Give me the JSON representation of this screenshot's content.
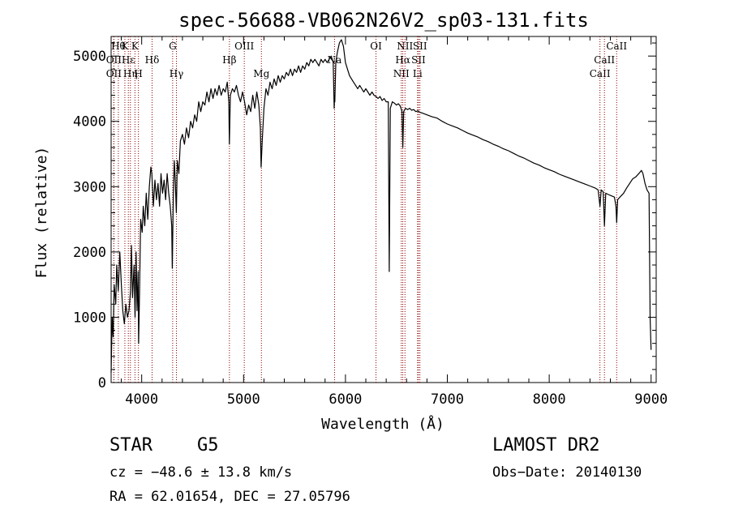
{
  "chart_data": {
    "type": "line",
    "title": "spec-56688-VB062N26V2_sp03-131.fits",
    "xlabel": "Wavelength (Å)",
    "ylabel": "Flux (relative)",
    "xlim": [
      3700,
      9050
    ],
    "ylim": [
      0,
      5300
    ],
    "xticks": [
      4000,
      5000,
      6000,
      7000,
      8000,
      9000
    ],
    "yticks": [
      0,
      1000,
      2000,
      3000,
      4000,
      5000
    ],
    "x_tick_labels": [
      "4000",
      "5000",
      "6000",
      "7000",
      "8000",
      "9000"
    ],
    "y_tick_labels": [
      "0",
      "1000",
      "2000",
      "3000",
      "4000",
      "5000"
    ],
    "line_color": "#000000",
    "marker_color": "#8b0000",
    "grid": false,
    "legend": "none",
    "series": [
      {
        "points": [
          [
            3700,
            150
          ],
          [
            3710,
            1000
          ],
          [
            3720,
            700
          ],
          [
            3730,
            1500
          ],
          [
            3745,
            1200
          ],
          [
            3755,
            1800
          ],
          [
            3770,
            1400
          ],
          [
            3785,
            2000
          ],
          [
            3800,
            1500
          ],
          [
            3815,
            1100
          ],
          [
            3830,
            900
          ],
          [
            3845,
            1200
          ],
          [
            3860,
            1000
          ],
          [
            3875,
            1100
          ],
          [
            3890,
            1400
          ],
          [
            3900,
            2100
          ],
          [
            3910,
            1300
          ],
          [
            3925,
            1800
          ],
          [
            3935,
            1000
          ],
          [
            3945,
            2000
          ],
          [
            3955,
            1100
          ],
          [
            3965,
            1700
          ],
          [
            3970,
            600
          ],
          [
            3980,
            1500
          ],
          [
            3990,
            2500
          ],
          [
            4005,
            2300
          ],
          [
            4015,
            2700
          ],
          [
            4030,
            2400
          ],
          [
            4045,
            2900
          ],
          [
            4060,
            2500
          ],
          [
            4075,
            3000
          ],
          [
            4090,
            3300
          ],
          [
            4100,
            3200
          ],
          [
            4115,
            2700
          ],
          [
            4130,
            3100
          ],
          [
            4145,
            2800
          ],
          [
            4160,
            3050
          ],
          [
            4175,
            2700
          ],
          [
            4190,
            3200
          ],
          [
            4205,
            2900
          ],
          [
            4220,
            3100
          ],
          [
            4235,
            2800
          ],
          [
            4250,
            3200
          ],
          [
            4265,
            2900
          ],
          [
            4280,
            2700
          ],
          [
            4295,
            2400
          ],
          [
            4300,
            1750
          ],
          [
            4310,
            2800
          ],
          [
            4320,
            3400
          ],
          [
            4330,
            3100
          ],
          [
            4340,
            2600
          ],
          [
            4350,
            3400
          ],
          [
            4365,
            3200
          ],
          [
            4380,
            3700
          ],
          [
            4400,
            3800
          ],
          [
            4420,
            3650
          ],
          [
            4440,
            3900
          ],
          [
            4460,
            3750
          ],
          [
            4480,
            4000
          ],
          [
            4500,
            3900
          ],
          [
            4520,
            4100
          ],
          [
            4540,
            4000
          ],
          [
            4560,
            4300
          ],
          [
            4580,
            4150
          ],
          [
            4600,
            4300
          ],
          [
            4620,
            4250
          ],
          [
            4640,
            4450
          ],
          [
            4660,
            4300
          ],
          [
            4680,
            4500
          ],
          [
            4700,
            4350
          ],
          [
            4720,
            4500
          ],
          [
            4740,
            4400
          ],
          [
            4760,
            4550
          ],
          [
            4780,
            4400
          ],
          [
            4800,
            4500
          ],
          [
            4820,
            4450
          ],
          [
            4840,
            4600
          ],
          [
            4855,
            4300
          ],
          [
            4861,
            3650
          ],
          [
            4870,
            4400
          ],
          [
            4890,
            4500
          ],
          [
            4910,
            4450
          ],
          [
            4930,
            4550
          ],
          [
            4950,
            4400
          ],
          [
            4970,
            4300
          ],
          [
            4990,
            4450
          ],
          [
            5010,
            4300
          ],
          [
            5030,
            4100
          ],
          [
            5050,
            4250
          ],
          [
            5070,
            4150
          ],
          [
            5090,
            4400
          ],
          [
            5110,
            4200
          ],
          [
            5130,
            4450
          ],
          [
            5150,
            4250
          ],
          [
            5165,
            3900
          ],
          [
            5172,
            3300
          ],
          [
            5183,
            3700
          ],
          [
            5200,
            4200
          ],
          [
            5220,
            4500
          ],
          [
            5240,
            4400
          ],
          [
            5260,
            4600
          ],
          [
            5280,
            4500
          ],
          [
            5300,
            4650
          ],
          [
            5320,
            4550
          ],
          [
            5340,
            4700
          ],
          [
            5360,
            4600
          ],
          [
            5380,
            4700
          ],
          [
            5400,
            4650
          ],
          [
            5420,
            4750
          ],
          [
            5440,
            4700
          ],
          [
            5460,
            4800
          ],
          [
            5480,
            4700
          ],
          [
            5500,
            4800
          ],
          [
            5520,
            4750
          ],
          [
            5540,
            4850
          ],
          [
            5560,
            4750
          ],
          [
            5580,
            4850
          ],
          [
            5600,
            4800
          ],
          [
            5620,
            4900
          ],
          [
            5640,
            4850
          ],
          [
            5660,
            4950
          ],
          [
            5680,
            4900
          ],
          [
            5700,
            4950
          ],
          [
            5720,
            4900
          ],
          [
            5740,
            4850
          ],
          [
            5760,
            4950
          ],
          [
            5780,
            4900
          ],
          [
            5800,
            4950
          ],
          [
            5820,
            4900
          ],
          [
            5840,
            4950
          ],
          [
            5860,
            5000
          ],
          [
            5880,
            4900
          ],
          [
            5889,
            4200
          ],
          [
            5893,
            4400
          ],
          [
            5896,
            4300
          ],
          [
            5905,
            4900
          ],
          [
            5920,
            5050
          ],
          [
            5940,
            5200
          ],
          [
            5960,
            5250
          ],
          [
            5980,
            5150
          ],
          [
            6000,
            4900
          ],
          [
            6020,
            4800
          ],
          [
            6040,
            4700
          ],
          [
            6060,
            4650
          ],
          [
            6080,
            4600
          ],
          [
            6100,
            4550
          ],
          [
            6120,
            4500
          ],
          [
            6140,
            4550
          ],
          [
            6160,
            4500
          ],
          [
            6180,
            4450
          ],
          [
            6200,
            4500
          ],
          [
            6220,
            4450
          ],
          [
            6240,
            4400
          ],
          [
            6260,
            4450
          ],
          [
            6280,
            4400
          ],
          [
            6300,
            4380
          ],
          [
            6320,
            4350
          ],
          [
            6340,
            4380
          ],
          [
            6360,
            4320
          ],
          [
            6380,
            4350
          ],
          [
            6400,
            4300
          ],
          [
            6420,
            4300
          ],
          [
            6430,
            1700
          ],
          [
            6440,
            4200
          ],
          [
            6460,
            4300
          ],
          [
            6480,
            4280
          ],
          [
            6500,
            4250
          ],
          [
            6520,
            4270
          ],
          [
            6540,
            4230
          ],
          [
            6555,
            4150
          ],
          [
            6563,
            3600
          ],
          [
            6572,
            4150
          ],
          [
            6590,
            4200
          ],
          [
            6610,
            4180
          ],
          [
            6630,
            4200
          ],
          [
            6650,
            4170
          ],
          [
            6670,
            4180
          ],
          [
            6690,
            4150
          ],
          [
            6710,
            4160
          ],
          [
            6730,
            4140
          ],
          [
            6750,
            4130
          ],
          [
            6800,
            4100
          ],
          [
            6850,
            4070
          ],
          [
            6900,
            4050
          ],
          [
            6950,
            4000
          ],
          [
            7000,
            3960
          ],
          [
            7050,
            3930
          ],
          [
            7100,
            3900
          ],
          [
            7150,
            3860
          ],
          [
            7200,
            3820
          ],
          [
            7250,
            3790
          ],
          [
            7300,
            3760
          ],
          [
            7350,
            3720
          ],
          [
            7400,
            3690
          ],
          [
            7450,
            3650
          ],
          [
            7500,
            3620
          ],
          [
            7550,
            3580
          ],
          [
            7600,
            3550
          ],
          [
            7650,
            3510
          ],
          [
            7700,
            3470
          ],
          [
            7750,
            3440
          ],
          [
            7800,
            3400
          ],
          [
            7850,
            3360
          ],
          [
            7900,
            3330
          ],
          [
            7950,
            3290
          ],
          [
            8000,
            3260
          ],
          [
            8050,
            3230
          ],
          [
            8100,
            3190
          ],
          [
            8150,
            3160
          ],
          [
            8200,
            3130
          ],
          [
            8250,
            3100
          ],
          [
            8300,
            3070
          ],
          [
            8350,
            3040
          ],
          [
            8400,
            3010
          ],
          [
            8450,
            2980
          ],
          [
            8480,
            2950
          ],
          [
            8498,
            2700
          ],
          [
            8510,
            2950
          ],
          [
            8530,
            2920
          ],
          [
            8542,
            2400
          ],
          [
            8555,
            2900
          ],
          [
            8580,
            2880
          ],
          [
            8610,
            2860
          ],
          [
            8640,
            2840
          ],
          [
            8655,
            2700
          ],
          [
            8662,
            2450
          ],
          [
            8672,
            2800
          ],
          [
            8700,
            2850
          ],
          [
            8730,
            2900
          ],
          [
            8760,
            2980
          ],
          [
            8790,
            3050
          ],
          [
            8820,
            3120
          ],
          [
            8850,
            3150
          ],
          [
            8880,
            3200
          ],
          [
            8905,
            3250
          ],
          [
            8920,
            3200
          ],
          [
            8940,
            3050
          ],
          [
            8960,
            2950
          ],
          [
            8980,
            2900
          ],
          [
            8990,
            1000
          ],
          [
            9000,
            500
          ]
        ]
      }
    ],
    "line_markers": [
      {
        "x": 3771,
        "label": "Hθ",
        "row": 0
      },
      {
        "x": 3727,
        "label": "OII",
        "row": 1
      },
      {
        "x": 3727,
        "label": "OII",
        "row": 2
      },
      {
        "x": 3835,
        "label": "K",
        "row": 0
      },
      {
        "x": 3869,
        "label": "Hε",
        "row": 1
      },
      {
        "x": 3889,
        "label": "Hη",
        "row": 2
      },
      {
        "x": 3934,
        "label": "K",
        "row": 0
      },
      {
        "x": 3968,
        "label": "H",
        "row": 2
      },
      {
        "x": 4102,
        "label": "Hδ",
        "row": 1
      },
      {
        "x": 4304,
        "label": "G",
        "row": 0
      },
      {
        "x": 4341,
        "label": "Hγ",
        "row": 2
      },
      {
        "x": 4861,
        "label": "Hβ",
        "row": 1
      },
      {
        "x": 5007,
        "label": "OIII",
        "row": 0
      },
      {
        "x": 5175,
        "label": "Mg",
        "row": 2
      },
      {
        "x": 5893,
        "label": "Na",
        "row": 1
      },
      {
        "x": 6300,
        "label": "OI",
        "row": 0
      },
      {
        "x": 6548,
        "label": "NII",
        "row": 2
      },
      {
        "x": 6563,
        "label": "Hα",
        "row": 1
      },
      {
        "x": 6584,
        "label": "NII",
        "row": 0
      },
      {
        "x": 6708,
        "label": "Li",
        "row": 2
      },
      {
        "x": 6717,
        "label": "SII",
        "row": 1
      },
      {
        "x": 6731,
        "label": "SII",
        "row": 0
      },
      {
        "x": 8498,
        "label": "CaII",
        "row": 2
      },
      {
        "x": 8542,
        "label": "CaII",
        "row": 1
      },
      {
        "x": 8662,
        "label": "CaII",
        "row": 0
      }
    ]
  },
  "info": {
    "object_class": "STAR",
    "subclass": "G5",
    "survey": "LAMOST DR2",
    "redshift": "cz = −48.6 ± 13.8 km/s",
    "obs_date": "Obs−Date: 20140130",
    "coords": "RA =  62.01654, DEC =  27.05796"
  }
}
